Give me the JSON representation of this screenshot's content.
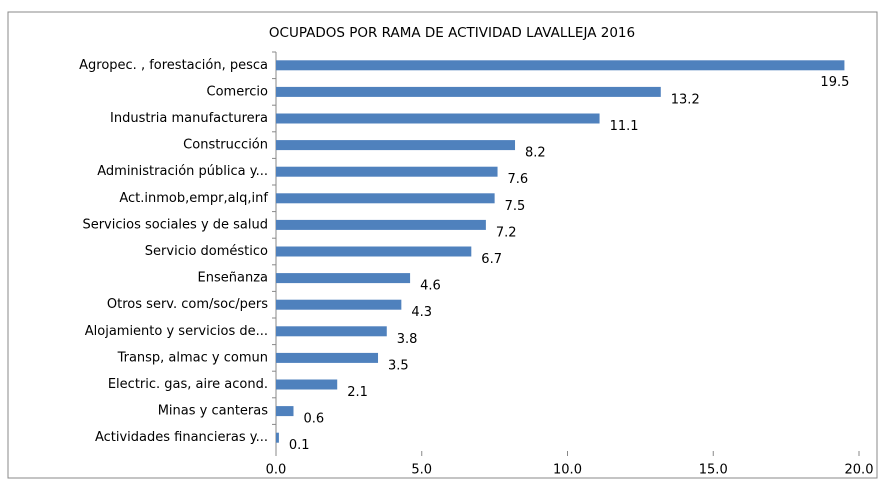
{
  "chart_data": {
    "type": "barh",
    "title": "OCUPADOS POR RAMA DE ACTIVIDAD LAVALLEJA 2016",
    "categories": [
      "Agropec. , forestación, pesca",
      "Comercio",
      "Industria manufacturera",
      "Construcción",
      "Administración pública y...",
      "Act.inmob,empr,alq,inf",
      "Servicios sociales y de salud",
      "Servicio doméstico",
      "Enseñanza",
      "Otros serv. com/soc/pers",
      "Alojamiento y servicios de...",
      "Transp, almac y comun",
      "Electric. gas, aire acond.",
      "Minas y canteras",
      "Actividades financieras y..."
    ],
    "values": [
      19.5,
      13.2,
      11.1,
      8.2,
      7.6,
      7.5,
      7.2,
      6.7,
      4.6,
      4.3,
      3.8,
      3.5,
      2.1,
      0.6,
      0.1
    ],
    "color": "#4f81bd",
    "xlim": [
      0,
      20
    ],
    "xticks": [
      {
        "value": 0,
        "label": "0.0"
      },
      {
        "value": 5,
        "label": "5.0"
      },
      {
        "value": 10,
        "label": "10.0"
      },
      {
        "value": 15,
        "label": "15.0"
      },
      {
        "value": 20,
        "label": "20.0"
      }
    ],
    "grid": false
  }
}
